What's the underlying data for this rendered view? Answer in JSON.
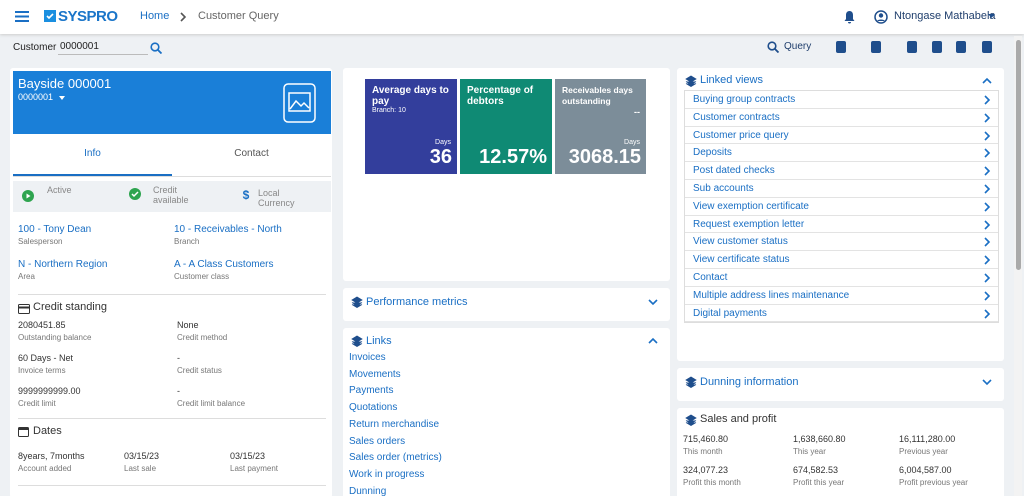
{
  "header": {
    "brand": "SYSPRO",
    "breadcrumb": [
      "Home",
      "Customer Query"
    ],
    "user": "Ntongase Mathabela"
  },
  "toolbar": {
    "customer_label": "Customer",
    "customer_value": "0000001",
    "query": "Query"
  },
  "customer_card": {
    "name": "Bayside 000001",
    "code": "0000001",
    "tabs": [
      "Info",
      "Contact"
    ],
    "status": [
      "Active",
      "Credit available",
      "Local Currency"
    ],
    "fields": [
      {
        "value": "100 - Tony Dean",
        "label": "Salesperson"
      },
      {
        "value": "10 - Receivables - North",
        "label": "Branch"
      },
      {
        "value": "N - Northern Region",
        "label": "Area"
      },
      {
        "value": "A - A Class Customers",
        "label": "Customer class"
      }
    ]
  },
  "credit_standing": {
    "title": "Credit standing",
    "fields": [
      {
        "value": "2080451.85",
        "label": "Outstanding balance"
      },
      {
        "value": "None",
        "label": "Credit method"
      },
      {
        "value": "60 Days - Net",
        "label": "Invoice terms"
      },
      {
        "value": "-",
        "label": "Credit status"
      },
      {
        "value": "9999999999.00",
        "label": "Credit limit"
      },
      {
        "value": "-",
        "label": "Credit limit balance"
      }
    ]
  },
  "dates": {
    "title": "Dates",
    "fields": [
      {
        "value": "8years, 7months",
        "label": "Account added"
      },
      {
        "value": "03/15/23",
        "label": "Last sale"
      },
      {
        "value": "03/15/23",
        "label": "Last payment"
      }
    ]
  },
  "tiles": [
    {
      "title": "Average days to pay",
      "subtitle": "Branch: 10",
      "unit": "Days",
      "value": "36"
    },
    {
      "title": "Percentage of debtors",
      "value": "12.57%"
    },
    {
      "title": "Receivables days outstanding",
      "subtitle": "--",
      "unit": "Days",
      "value": "3068.15"
    }
  ],
  "performance_metrics": {
    "title": "Performance metrics"
  },
  "links": {
    "title": "Links",
    "items": [
      "Invoices",
      "Movements",
      "Payments",
      "Quotations",
      "Return merchandise",
      "Sales orders",
      "Sales order (metrics)",
      "Work in progress",
      "Dunning"
    ]
  },
  "linked_views": {
    "title": "Linked views",
    "items": [
      "Buying group contracts",
      "Customer contracts",
      "Customer price query",
      "Deposits",
      "Post dated checks",
      "Sub accounts",
      "View exemption certificate",
      "Request exemption letter",
      "View customer status",
      "View certificate status",
      "Contact",
      "Multiple address lines maintenance",
      "Digital payments"
    ]
  },
  "dunning": {
    "title": "Dunning information"
  },
  "sales_profit": {
    "title": "Sales and profit",
    "fields": [
      {
        "value": "715,460.80",
        "label": "This month"
      },
      {
        "value": "1,638,660.80",
        "label": "This year"
      },
      {
        "value": "16,111,280.00",
        "label": "Previous year"
      },
      {
        "value": "324,077.23",
        "label": "Profit this month"
      },
      {
        "value": "674,582.53",
        "label": "Profit this year"
      },
      {
        "value": "6,004,587.00",
        "label": "Profit previous year"
      }
    ]
  }
}
